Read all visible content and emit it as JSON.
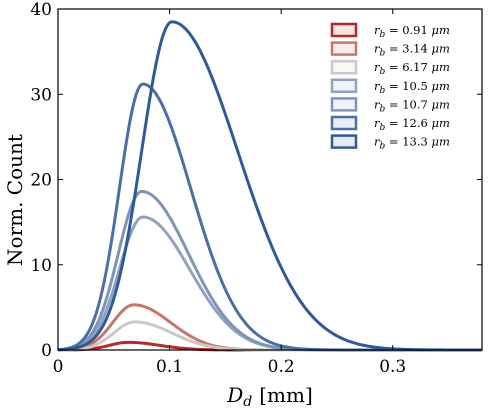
{
  "chart_data": {
    "type": "line",
    "xlabel_main": "D",
    "xlabel_sub": "d",
    "xlabel_unit": "[mm]",
    "ylabel": "Norm. Count",
    "xlim": [
      0,
      0.38
    ],
    "ylim": [
      0,
      40
    ],
    "xticks": [
      0,
      0.1,
      0.2,
      0.3
    ],
    "xtick_labels": [
      "0",
      "0.1",
      "0.2",
      "0.3"
    ],
    "yticks": [
      0,
      10,
      20,
      30,
      40
    ],
    "ytick_labels": [
      "0",
      "10",
      "20",
      "30",
      "40"
    ],
    "grid": false,
    "legend_position": "top-right",
    "legend_unit": "μm",
    "series": [
      {
        "name": "0.91",
        "color": "#B22A2A",
        "peak_x": 0.063,
        "peak_y": 0.9,
        "sigma_left": 0.017,
        "sigma_right": 0.028
      },
      {
        "name": "3.14",
        "color": "#C8766B",
        "peak_x": 0.068,
        "peak_y": 5.3,
        "sigma_left": 0.019,
        "sigma_right": 0.033
      },
      {
        "name": "6.17",
        "color": "#C9C9C9",
        "peak_x": 0.069,
        "peak_y": 3.3,
        "sigma_left": 0.019,
        "sigma_right": 0.033
      },
      {
        "name": "10.5",
        "color": "#8FA2BF",
        "peak_x": 0.076,
        "peak_y": 15.6,
        "sigma_left": 0.021,
        "sigma_right": 0.042
      },
      {
        "name": "10.7",
        "color": "#7E95B7",
        "peak_x": 0.075,
        "peak_y": 18.6,
        "sigma_left": 0.021,
        "sigma_right": 0.042
      },
      {
        "name": "12.6",
        "color": "#4A6FA5",
        "peak_x": 0.076,
        "peak_y": 31.2,
        "sigma_left": 0.021,
        "sigma_right": 0.043
      },
      {
        "name": "13.3",
        "color": "#2F5A9A",
        "peak_x": 0.102,
        "peak_y": 38.5,
        "sigma_left": 0.027,
        "sigma_right": 0.059
      }
    ]
  }
}
